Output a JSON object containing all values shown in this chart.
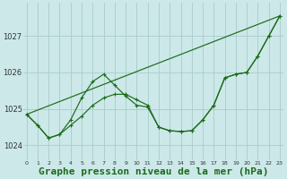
{
  "xlabel": "Graphe pression niveau de la mer (hPa)",
  "ylabel": "",
  "background_color": "#cce8e8",
  "grid_color": "#aacccc",
  "line_color": "#1a6b1a",
  "marker_color": "#1a6b1a",
  "x_ticks": [
    0,
    1,
    2,
    3,
    4,
    5,
    6,
    7,
    8,
    9,
    10,
    11,
    12,
    13,
    14,
    15,
    16,
    17,
    18,
    19,
    20,
    21,
    22,
    23
  ],
  "ylim": [
    1023.6,
    1027.9
  ],
  "yticks": [
    1024,
    1025,
    1026,
    1027
  ],
  "series1_x": [
    0,
    1,
    2,
    3,
    4,
    5,
    6,
    7,
    8,
    9,
    10,
    11,
    12,
    13,
    14,
    15,
    16,
    17,
    18,
    19,
    20,
    21,
    22,
    23
  ],
  "series1_y": [
    1024.85,
    1024.55,
    1024.2,
    1024.3,
    1024.7,
    1025.3,
    1025.75,
    1025.95,
    1025.65,
    1025.35,
    1025.1,
    1025.05,
    1024.5,
    1024.4,
    1024.38,
    1024.4,
    1024.7,
    1025.1,
    1025.85,
    1025.95,
    1026.0,
    1026.45,
    1027.0,
    1027.55
  ],
  "series2_x": [
    0,
    1,
    2,
    3,
    4,
    5,
    6,
    7,
    8,
    9,
    10,
    11,
    12,
    13,
    14,
    15,
    16,
    17,
    18,
    19,
    20,
    21,
    22,
    23
  ],
  "series2_y": [
    1024.85,
    1024.55,
    1024.2,
    1024.3,
    1024.55,
    1024.8,
    1025.1,
    1025.3,
    1025.4,
    1025.4,
    1025.25,
    1025.1,
    1024.5,
    1024.4,
    1024.38,
    1024.4,
    1024.7,
    1025.1,
    1025.85,
    1025.95,
    1026.0,
    1026.45,
    1027.0,
    1027.55
  ],
  "trend_x": [
    0,
    23
  ],
  "trend_y": [
    1024.85,
    1027.55
  ],
  "xlabel_fontsize": 8,
  "tick_fontsize": 6.5,
  "xlabel_bold": true
}
